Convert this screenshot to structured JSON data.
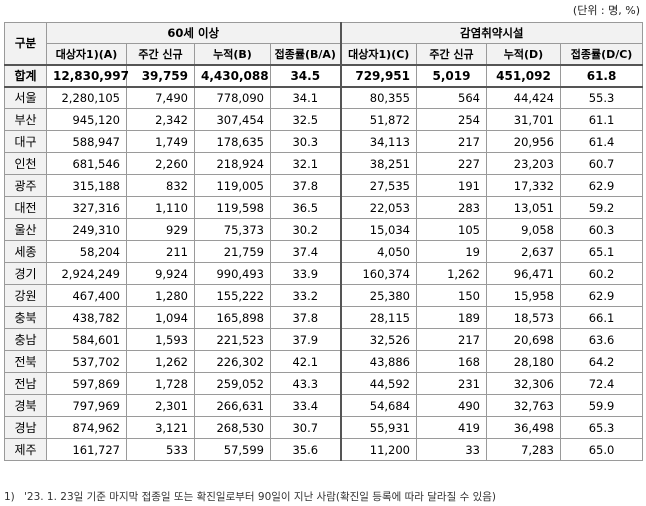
{
  "unit_label": "(단위 : 명, %)",
  "header": {
    "region_col": "구분",
    "group1": "60세 이상",
    "group2": "감염취약시설",
    "sub1": [
      "대상자1)(A)",
      "주간 신규",
      "누적(B)",
      "접종률(B/A)"
    ],
    "sub2": [
      "대상자1)(C)",
      "주간 신규",
      "누적(D)",
      "접종률(D/C)"
    ]
  },
  "total": {
    "region": "합계",
    "values": [
      "12,830,997",
      "39,759",
      "4,430,088",
      "34.5",
      "729,951",
      "5,019",
      "451,092",
      "61.8"
    ]
  },
  "rows": [
    {
      "region": "서울",
      "values": [
        "2,280,105",
        "7,490",
        "778,090",
        "34.1",
        "80,355",
        "564",
        "44,424",
        "55.3"
      ]
    },
    {
      "region": "부산",
      "values": [
        "945,120",
        "2,342",
        "307,454",
        "32.5",
        "51,872",
        "254",
        "31,701",
        "61.1"
      ]
    },
    {
      "region": "대구",
      "values": [
        "588,947",
        "1,749",
        "178,635",
        "30.3",
        "34,113",
        "217",
        "20,956",
        "61.4"
      ]
    },
    {
      "region": "인천",
      "values": [
        "681,546",
        "2,260",
        "218,924",
        "32.1",
        "38,251",
        "227",
        "23,203",
        "60.7"
      ]
    },
    {
      "region": "광주",
      "values": [
        "315,188",
        "832",
        "119,005",
        "37.8",
        "27,535",
        "191",
        "17,332",
        "62.9"
      ]
    },
    {
      "region": "대전",
      "values": [
        "327,316",
        "1,110",
        "119,598",
        "36.5",
        "22,053",
        "283",
        "13,051",
        "59.2"
      ]
    },
    {
      "region": "울산",
      "values": [
        "249,310",
        "929",
        "75,373",
        "30.2",
        "15,034",
        "105",
        "9,058",
        "60.3"
      ]
    },
    {
      "region": "세종",
      "values": [
        "58,204",
        "211",
        "21,759",
        "37.4",
        "4,050",
        "19",
        "2,637",
        "65.1"
      ]
    },
    {
      "region": "경기",
      "values": [
        "2,924,249",
        "9,924",
        "990,493",
        "33.9",
        "160,374",
        "1,262",
        "96,471",
        "60.2"
      ]
    },
    {
      "region": "강원",
      "values": [
        "467,400",
        "1,280",
        "155,222",
        "33.2",
        "25,380",
        "150",
        "15,958",
        "62.9"
      ]
    },
    {
      "region": "충북",
      "values": [
        "438,782",
        "1,094",
        "165,898",
        "37.8",
        "28,115",
        "189",
        "18,573",
        "66.1"
      ]
    },
    {
      "region": "충남",
      "values": [
        "584,601",
        "1,593",
        "221,523",
        "37.9",
        "32,526",
        "217",
        "20,698",
        "63.6"
      ]
    },
    {
      "region": "전북",
      "values": [
        "537,702",
        "1,262",
        "226,302",
        "42.1",
        "43,886",
        "168",
        "28,180",
        "64.2"
      ]
    },
    {
      "region": "전남",
      "values": [
        "597,869",
        "1,728",
        "259,052",
        "43.3",
        "44,592",
        "231",
        "32,306",
        "72.4"
      ]
    },
    {
      "region": "경북",
      "values": [
        "797,969",
        "2,301",
        "266,631",
        "33.4",
        "54,684",
        "490",
        "32,763",
        "59.9"
      ]
    },
    {
      "region": "경남",
      "values": [
        "874,962",
        "3,121",
        "268,530",
        "30.7",
        "55,931",
        "419",
        "36,498",
        "65.3"
      ]
    },
    {
      "region": "제주",
      "values": [
        "161,727",
        "533",
        "57,599",
        "35.6",
        "11,200",
        "33",
        "7,283",
        "65.0"
      ]
    }
  ],
  "footnote": {
    "mark": "1)",
    "text": "'23. 1. 23일 기준 마지막 접종일 또는 확진일로부터 90일이 지난 사람(확진일 등록에 따라 달라질 수 있음)"
  }
}
